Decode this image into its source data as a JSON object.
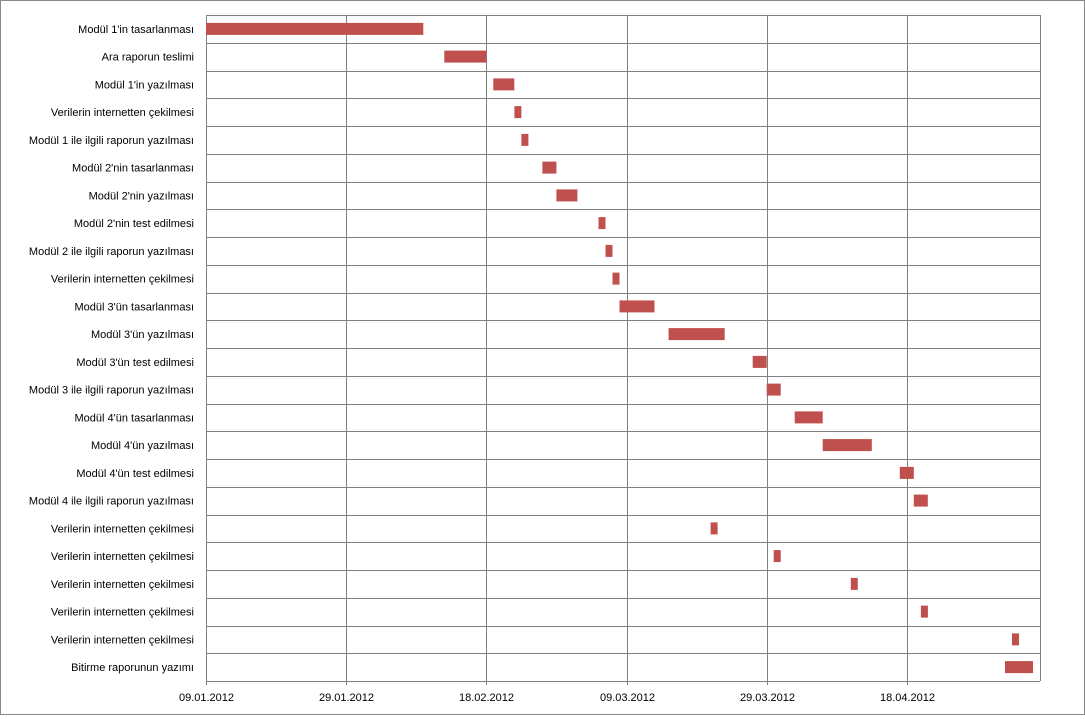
{
  "chart_data": {
    "type": "bar",
    "orientation": "horizontal",
    "subtype": "gantt",
    "title": "",
    "xlabel": "",
    "ylabel": "",
    "legend": "none",
    "grid": true,
    "bar_color": "#c0504d",
    "grid_color": "#808080",
    "x_start": "2012-01-09",
    "x_end": "2012-05-07",
    "x_ticks": [
      "09.01.2012",
      "29.01.2012",
      "18.02.2012",
      "09.03.2012",
      "29.03.2012",
      "18.04.2012"
    ],
    "tasks": [
      {
        "label": "Modül 1'in tasarlanması",
        "start": "2012-01-09",
        "end": "2012-02-09"
      },
      {
        "label": "Ara raporun teslimi",
        "start": "2012-02-12",
        "end": "2012-02-18"
      },
      {
        "label": "Modül 1'in yazılması",
        "start": "2012-02-19",
        "end": "2012-02-22"
      },
      {
        "label": "Verilerin internetten çekilmesi",
        "start": "2012-02-22",
        "end": "2012-02-23"
      },
      {
        "label": "Modül 1 ile ilgili raporun yazılması",
        "start": "2012-02-23",
        "end": "2012-02-24"
      },
      {
        "label": "Modül 2'nin tasarlanması",
        "start": "2012-02-26",
        "end": "2012-02-28"
      },
      {
        "label": "Modül 2'nin yazılması",
        "start": "2012-02-28",
        "end": "2012-03-02"
      },
      {
        "label": "Modül 2'nin test edilmesi",
        "start": "2012-03-05",
        "end": "2012-03-06"
      },
      {
        "label": "Modül 2 ile ilgili raporun yazılması",
        "start": "2012-03-06",
        "end": "2012-03-07"
      },
      {
        "label": "Verilerin internetten çekilmesi",
        "start": "2012-03-07",
        "end": "2012-03-08"
      },
      {
        "label": "Modül 3'ün tasarlanması",
        "start": "2012-03-08",
        "end": "2012-03-13"
      },
      {
        "label": "Modül 3'ün yazılması",
        "start": "2012-03-15",
        "end": "2012-03-23"
      },
      {
        "label": "Modül 3'ün test edilmesi",
        "start": "2012-03-27",
        "end": "2012-03-29"
      },
      {
        "label": "Modül 3 ile ilgili raporun yazılması",
        "start": "2012-03-29",
        "end": "2012-03-31"
      },
      {
        "label": "Modül 4'ün tasarlanması",
        "start": "2012-04-02",
        "end": "2012-04-06"
      },
      {
        "label": "Modül 4'ün yazılması",
        "start": "2012-04-06",
        "end": "2012-04-13"
      },
      {
        "label": "Modül 4'ün test edilmesi",
        "start": "2012-04-17",
        "end": "2012-04-19"
      },
      {
        "label": "Modül 4 ile ilgili raporun yazılması",
        "start": "2012-04-19",
        "end": "2012-04-21"
      },
      {
        "label": "Verilerin internetten çekilmesi",
        "start": "2012-03-21",
        "end": "2012-03-22"
      },
      {
        "label": "Verilerin internetten çekilmesi",
        "start": "2012-03-30",
        "end": "2012-03-31"
      },
      {
        "label": "Verilerin internetten çekilmesi",
        "start": "2012-04-10",
        "end": "2012-04-11"
      },
      {
        "label": "Verilerin internetten çekilmesi",
        "start": "2012-04-20",
        "end": "2012-04-21"
      },
      {
        "label": "Verilerin internetten çekilmesi",
        "start": "2012-05-03",
        "end": "2012-05-04"
      },
      {
        "label": "Bitirme raporunun yazımı",
        "start": "2012-05-02",
        "end": "2012-05-06"
      }
    ]
  }
}
